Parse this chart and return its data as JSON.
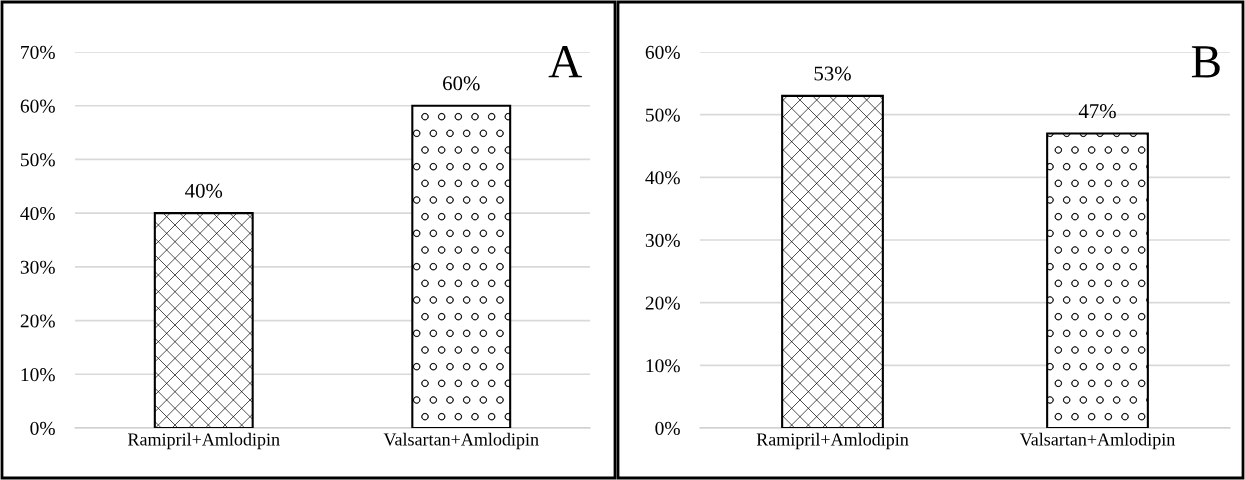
{
  "chart_data": [
    {
      "type": "bar",
      "categories": [
        "Ramipril+Amlodipin",
        "Valsartan+Amlodipin"
      ],
      "values": [
        40,
        60
      ],
      "value_labels": [
        "40%",
        "60%"
      ],
      "color": "#000000",
      "ylim": [
        0,
        70
      ],
      "yticks": [
        {
          "value": 0,
          "label": "0%"
        },
        {
          "value": 10,
          "label": "10%"
        },
        {
          "value": 20,
          "label": "20%"
        },
        {
          "value": 30,
          "label": "30%"
        },
        {
          "value": 40,
          "label": "40%"
        },
        {
          "value": 50,
          "label": "50%"
        },
        {
          "value": 60,
          "label": "60%"
        },
        {
          "value": 70,
          "label": "70%"
        }
      ],
      "grid": "y",
      "annotations": [
        "A"
      ]
    },
    {
      "type": "bar",
      "categories": [
        "Ramipril+Amlodipin",
        "Valsartan+Amlodipin"
      ],
      "values": [
        53,
        47
      ],
      "value_labels": [
        "53%",
        "47%"
      ],
      "color": "#000000",
      "ylim": [
        0,
        60
      ],
      "yticks": [
        {
          "value": 0,
          "label": "0%"
        },
        {
          "value": 10,
          "label": "10%"
        },
        {
          "value": 20,
          "label": "20%"
        },
        {
          "value": 30,
          "label": "30%"
        },
        {
          "value": 40,
          "label": "40%"
        },
        {
          "value": 50,
          "label": "50%"
        },
        {
          "value": 60,
          "label": "60%"
        }
      ],
      "grid": "y",
      "annotations": [
        "B"
      ]
    }
  ]
}
